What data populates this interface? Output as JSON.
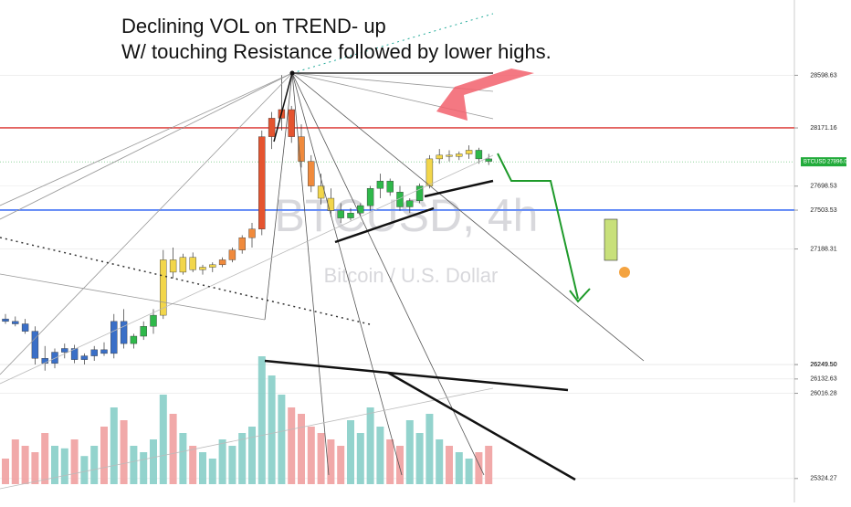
{
  "chart_data": {
    "type": "candlestick",
    "title": [
      "Declining VOL on  TREND- up",
      "W/ touching Resistance followed by lower highs."
    ],
    "watermark": "BTCUSD, 4h",
    "watermark_subtitle": "Bitcoin / U.S. Dollar",
    "ylim": [
      25130,
      29210
    ],
    "yticks": [
      28598.63,
      28171.16,
      27698.53,
      27503.53,
      27188.31,
      {
        "value": 26249.5,
        "label": "26249.50"
      },
      {
        "value": 26249.5,
        "label": "26249.50"
      },
      26132.63,
      26016.28,
      25324.27
    ],
    "hlines": [
      {
        "value": 28171.16,
        "color": "#e53935"
      },
      {
        "value": 27503.53,
        "color": "#2962ff"
      }
    ],
    "last_price": {
      "symbol": "BTCUSD",
      "value": 27896.06,
      "color": "#22ab3b"
    },
    "open": [
      26620,
      26600,
      26580,
      26520,
      26300,
      26260,
      26350,
      26380,
      26290,
      26320,
      26370,
      26340,
      26600,
      26420,
      26480,
      26560,
      26650,
      27100,
      27000,
      27120,
      27020,
      27040,
      27060,
      27100,
      27180,
      27280,
      27350,
      28100,
      28250,
      28320,
      28100,
      27900,
      27700,
      27600,
      27500,
      27440,
      27480,
      27540,
      27680,
      27740,
      27650,
      27530,
      27580,
      27700,
      27920,
      27950,
      27940,
      27960,
      27990,
      27920
    ],
    "high": [
      26660,
      26640,
      26620,
      26560,
      26400,
      26380,
      26420,
      26410,
      26340,
      26400,
      26430,
      26660,
      26700,
      26500,
      26600,
      26700,
      27180,
      27200,
      27150,
      27160,
      27060,
      27080,
      27120,
      27200,
      27300,
      27400,
      28150,
      28300,
      28600,
      28350,
      28200,
      27950,
      27800,
      27680,
      27560,
      27520,
      27560,
      27700,
      27800,
      27760,
      27700,
      27600,
      27720,
      27950,
      28000,
      27990,
      27980,
      28030,
      28010,
      27960
    ],
    "low": [
      26580,
      26560,
      26500,
      26250,
      26200,
      26220,
      26300,
      26260,
      26250,
      26280,
      26320,
      26300,
      26380,
      26380,
      26450,
      26500,
      26620,
      26950,
      26980,
      27000,
      26980,
      27000,
      27040,
      27080,
      27150,
      27200,
      27300,
      28000,
      28150,
      28050,
      27850,
      27650,
      27550,
      27450,
      27400,
      27420,
      27460,
      27500,
      27600,
      27620,
      27500,
      27480,
      27560,
      27680,
      27880,
      27900,
      27910,
      27920,
      27880,
      27870
    ],
    "close": [
      26600,
      26580,
      26520,
      26300,
      26260,
      26350,
      26380,
      26290,
      26320,
      26370,
      26340,
      26600,
      26420,
      26480,
      26560,
      26650,
      27100,
      27000,
      27120,
      27020,
      27040,
      27060,
      27100,
      27180,
      27280,
      27350,
      28100,
      28250,
      28320,
      28100,
      27900,
      27700,
      27600,
      27500,
      27440,
      27480,
      27540,
      27680,
      27740,
      27650,
      27530,
      27580,
      27700,
      27920,
      27950,
      27940,
      27960,
      27990,
      27920,
      27900
    ],
    "colors": [
      "#3a6fc7",
      "#3a6fc7",
      "#3a6fc7",
      "#3a6fc7",
      "#3a6fc7",
      "#3a6fc7",
      "#3a6fc7",
      "#3a6fc7",
      "#3a6fc7",
      "#3a6fc7",
      "#3a6fc7",
      "#3a6fc7",
      "#3a6fc7",
      "#2fb84a",
      "#2fb84a",
      "#2fb84a",
      "#f2d64b",
      "#f2d64b",
      "#f2d64b",
      "#f2d64b",
      "#f2d64b",
      "#f2d64b",
      "#f08a3c",
      "#f08a3c",
      "#f08a3c",
      "#f08a3c",
      "#e5542f",
      "#e5542f",
      "#e5542f",
      "#e5542f",
      "#f08a3c",
      "#f08a3c",
      "#f2d64b",
      "#f2d64b",
      "#2fb84a",
      "#2fb84a",
      "#2fb84a",
      "#2fb84a",
      "#2fb84a",
      "#2fb84a",
      "#2fb84a",
      "#2fb84a",
      "#2fb84a",
      "#f2d64b",
      "#f2d64b",
      "#f2d64b",
      "#f2d64b",
      "#f2d64b",
      "#2fb84a",
      "#2fb84a"
    ],
    "volume": [
      20,
      35,
      30,
      25,
      40,
      30,
      28,
      35,
      22,
      30,
      45,
      60,
      50,
      30,
      25,
      35,
      70,
      55,
      40,
      30,
      25,
      20,
      35,
      30,
      40,
      45,
      100,
      85,
      70,
      60,
      55,
      45,
      40,
      35,
      30,
      50,
      40,
      60,
      45,
      35,
      30,
      50,
      40,
      55,
      35,
      30,
      25,
      20,
      25,
      30
    ],
    "volume_colors": [
      "#80cbc4",
      "#ef9a9a"
    ]
  }
}
